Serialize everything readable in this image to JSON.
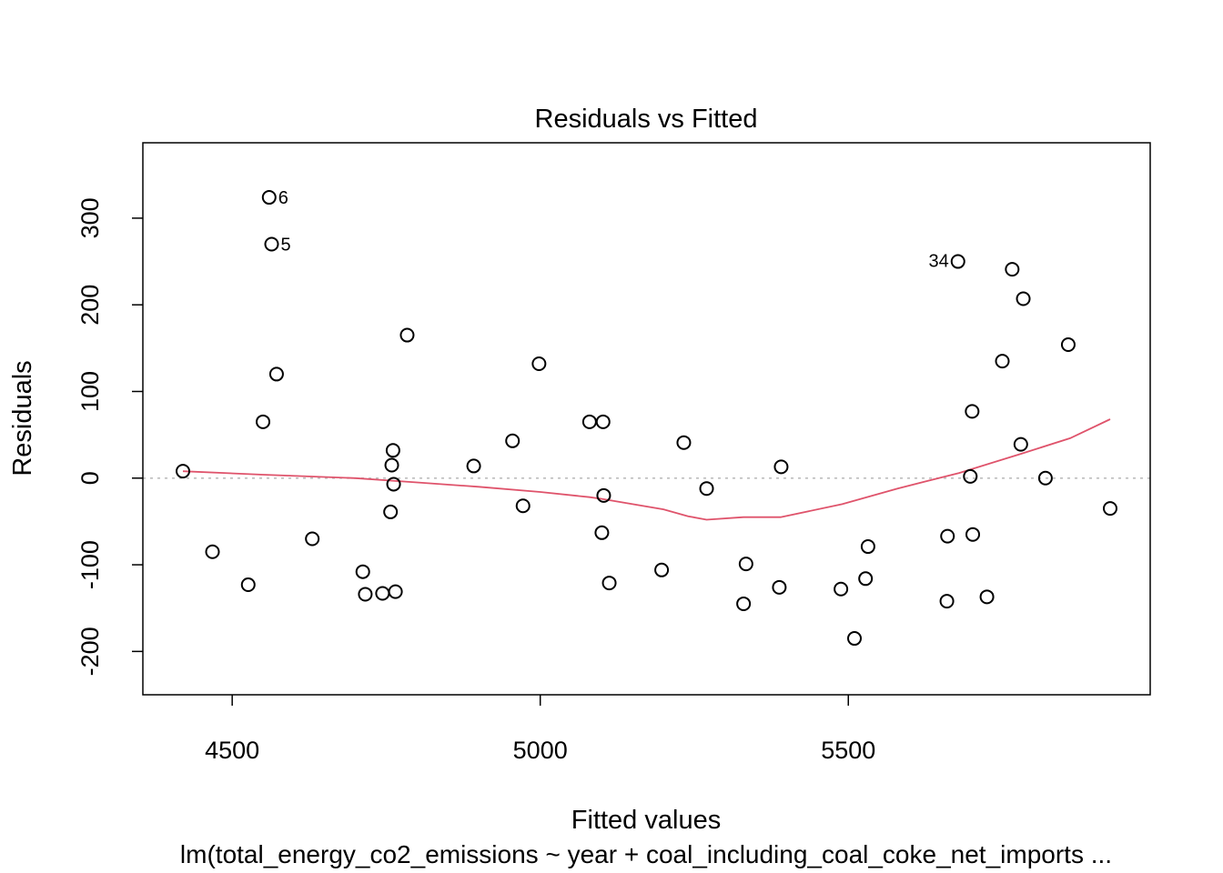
{
  "chart_data": {
    "type": "scatter",
    "title": "Residuals vs Fitted",
    "xlabel": "Fitted values",
    "ylabel": "Residuals",
    "subtitle": "lm(total_energy_co2_emissions ~ year + coal_including_coal_coke_net_imports ...",
    "xlim": [
      4355,
      5990
    ],
    "ylim": [
      -250,
      387
    ],
    "x_ticks": [
      4500,
      5000,
      5500
    ],
    "y_ticks": [
      -200,
      -100,
      0,
      100,
      200,
      300
    ],
    "x_tick_labels": [
      "4500",
      "5000",
      "5500"
    ],
    "y_tick_labels": [
      "-200",
      "-100",
      "0",
      "100",
      "200",
      "300"
    ],
    "reference_line": {
      "y": 0,
      "color": "#bebebe",
      "style": "dotted"
    },
    "grid": false,
    "points": [
      {
        "x": 4420,
        "y": 8
      },
      {
        "x": 4468,
        "y": -85
      },
      {
        "x": 4526,
        "y": -123
      },
      {
        "x": 4550,
        "y": 65
      },
      {
        "x": 4560,
        "y": 324
      },
      {
        "x": 4564,
        "y": 270
      },
      {
        "x": 4572,
        "y": 120
      },
      {
        "x": 4630,
        "y": -70
      },
      {
        "x": 4712,
        "y": -108
      },
      {
        "x": 4716,
        "y": -134
      },
      {
        "x": 4744,
        "y": -133
      },
      {
        "x": 4757,
        "y": -39
      },
      {
        "x": 4759,
        "y": 15
      },
      {
        "x": 4761,
        "y": 32
      },
      {
        "x": 4762,
        "y": -7
      },
      {
        "x": 4765,
        "y": -131
      },
      {
        "x": 4784,
        "y": 165
      },
      {
        "x": 4892,
        "y": 14
      },
      {
        "x": 4955,
        "y": 43
      },
      {
        "x": 4972,
        "y": -32
      },
      {
        "x": 4998,
        "y": 132
      },
      {
        "x": 5080,
        "y": 65
      },
      {
        "x": 5100,
        "y": -63
      },
      {
        "x": 5102,
        "y": 65
      },
      {
        "x": 5103,
        "y": -20
      },
      {
        "x": 5112,
        "y": -121
      },
      {
        "x": 5197,
        "y": -106
      },
      {
        "x": 5233,
        "y": 41
      },
      {
        "x": 5270,
        "y": -12
      },
      {
        "x": 5330,
        "y": -145
      },
      {
        "x": 5334,
        "y": -99
      },
      {
        "x": 5388,
        "y": -126
      },
      {
        "x": 5391,
        "y": 13
      },
      {
        "x": 5488,
        "y": -128
      },
      {
        "x": 5510,
        "y": -185
      },
      {
        "x": 5528,
        "y": -116
      },
      {
        "x": 5532,
        "y": -79
      },
      {
        "x": 5660,
        "y": -142
      },
      {
        "x": 5661,
        "y": -67
      },
      {
        "x": 5678,
        "y": 250
      },
      {
        "x": 5698,
        "y": 2
      },
      {
        "x": 5701,
        "y": 77
      },
      {
        "x": 5702,
        "y": -65
      },
      {
        "x": 5725,
        "y": -137
      },
      {
        "x": 5750,
        "y": 135
      },
      {
        "x": 5766,
        "y": 241
      },
      {
        "x": 5780,
        "y": 39
      },
      {
        "x": 5784,
        "y": 207
      },
      {
        "x": 5820,
        "y": 0
      },
      {
        "x": 5857,
        "y": 154
      },
      {
        "x": 5925,
        "y": -35
      }
    ],
    "point_labels": [
      {
        "label": "6",
        "x": 4560,
        "y": 324,
        "side": "right"
      },
      {
        "label": "5",
        "x": 4564,
        "y": 270,
        "side": "right"
      },
      {
        "label": "34",
        "x": 5678,
        "y": 250,
        "side": "left"
      }
    ],
    "smooth_line": {
      "color": "#df536b",
      "points": [
        [
          4420,
          8
        ],
        [
          4550,
          4
        ],
        [
          4700,
          0
        ],
        [
          4800,
          -5
        ],
        [
          4900,
          -10
        ],
        [
          5000,
          -16
        ],
        [
          5080,
          -22
        ],
        [
          5100,
          -24
        ],
        [
          5200,
          -36
        ],
        [
          5240,
          -44
        ],
        [
          5270,
          -48
        ],
        [
          5330,
          -45
        ],
        [
          5390,
          -45
        ],
        [
          5490,
          -30
        ],
        [
          5580,
          -12
        ],
        [
          5680,
          6
        ],
        [
          5780,
          28
        ],
        [
          5860,
          46
        ],
        [
          5925,
          68
        ]
      ]
    }
  }
}
